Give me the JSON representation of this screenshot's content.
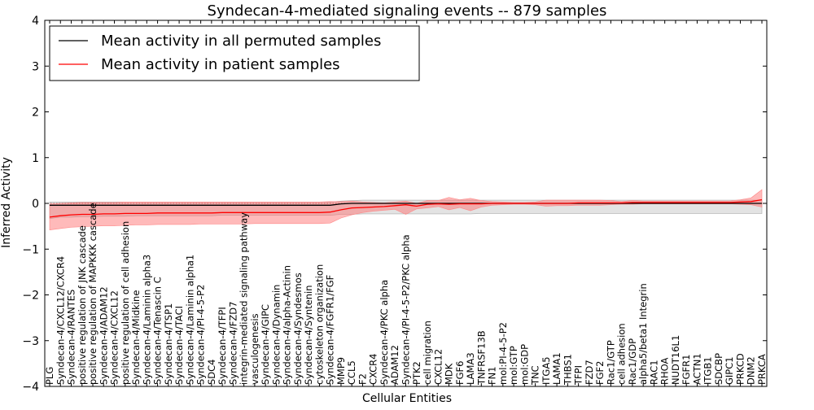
{
  "chart_data": {
    "type": "line",
    "title": "Syndecan-4-mediated signaling events -- 879 samples",
    "xlabel": "Cellular Entities",
    "ylabel": "Inferred Activity",
    "ylim": [
      -4,
      4
    ],
    "yticks": [
      "−4",
      "−3",
      "−2",
      "−1",
      "0",
      "1",
      "2",
      "3",
      "4"
    ],
    "legend": {
      "placement": "top-left",
      "entries": [
        {
          "label": "Mean activity in all permuted samples",
          "color": "#000000"
        },
        {
          "label": "Mean activity in patient samples",
          "color": "#ff0000"
        }
      ]
    },
    "categories": [
      "PLG",
      "Syndecan-4/CXCL12/CXCR4",
      "Syndecan-4/RANTES",
      "positive regulation of JNK cascade",
      "positive regulation of MAPKKK cascade",
      "Syndecan-4/ADAM12",
      "Syndecan-4/CXCL12",
      "positive regulation of cell adhesion",
      "Syndecan-4/Midkine",
      "Syndecan-4/Laminin alpha3",
      "Syndecan-4/Tenascin C",
      "Syndecan-4/TSP1",
      "Syndecan-4/TACI",
      "Syndecan-4/Laminin alpha1",
      "Syndecan-4/PI-4-5-P2",
      "SDC4",
      "Syndecan-4/TFPI",
      "Syndecan-4/FZD7",
      "integrin-mediated signaling pathway",
      "vasculogenesis",
      "Syndecan-4/GIPC",
      "Syndecan-4/Dynamin",
      "Syndecan-4/alpha-Actinin",
      "Syndecan-4/Syndesmos",
      "Syndecan-4/Syntenin",
      "cytoskeleton organization",
      "Syndecan-4/FGFR1/FGF",
      "MMP9",
      "CCL5",
      "F2",
      "CXCR4",
      "Syndecan-4/PKC alpha",
      "ADAM12",
      "Syndecan-4/PI-4-5-P2/PKC alpha",
      "PTK2",
      "cell migration",
      "CXCL12",
      "MDK",
      "FGF6",
      "LAMA3",
      "TNFRSF13B",
      "FN1",
      "mol:PI-4-5-P2",
      "mol:GTP",
      "mol:GDP",
      "TNC",
      "ITGA5",
      "LAMA1",
      "THBS1",
      "TFPI",
      "FZD7",
      "FGF2",
      "Rac1/GTP",
      "cell adhesion",
      "Rac1/GDP",
      "alpha5/beta1 Integrin",
      "RAC1",
      "RHOA",
      "NUDT16L1",
      "FGFR1",
      "ACTN1",
      "ITGB1",
      "SDCBP",
      "GIPC1",
      "PRKCD",
      "DNM2",
      "PRKCA"
    ],
    "series": [
      {
        "name": "Mean activity in all permuted samples",
        "color": "#000000",
        "values": [
          -0.04,
          -0.04,
          -0.04,
          -0.04,
          -0.04,
          -0.04,
          -0.04,
          -0.04,
          -0.04,
          -0.04,
          -0.04,
          -0.04,
          -0.04,
          -0.04,
          -0.04,
          -0.04,
          -0.04,
          -0.04,
          -0.04,
          -0.04,
          -0.04,
          -0.04,
          -0.04,
          -0.04,
          -0.04,
          -0.04,
          -0.04,
          -0.01,
          0.0,
          0.0,
          0.0,
          0.0,
          0.0,
          0.0,
          0.0,
          0.0,
          0.0,
          0.0,
          0.0,
          0.0,
          0.0,
          0.0,
          0.0,
          0.0,
          0.0,
          0.0,
          0.0,
          0.0,
          0.0,
          0.0,
          0.0,
          0.0,
          0.0,
          0.0,
          0.0,
          0.0,
          0.0,
          0.0,
          0.0,
          0.0,
          0.0,
          0.0,
          0.0,
          0.0,
          0.0,
          0.0,
          0.0
        ],
        "lower": [
          -0.33,
          -0.3,
          -0.3,
          -0.29,
          -0.29,
          -0.28,
          -0.28,
          -0.28,
          -0.27,
          -0.27,
          -0.27,
          -0.27,
          -0.27,
          -0.27,
          -0.27,
          -0.27,
          -0.26,
          -0.26,
          -0.26,
          -0.26,
          -0.26,
          -0.26,
          -0.26,
          -0.26,
          -0.26,
          -0.26,
          -0.26,
          -0.24,
          -0.24,
          -0.23,
          -0.23,
          -0.23,
          -0.23,
          -0.23,
          -0.23,
          -0.23,
          -0.23,
          -0.23,
          -0.23,
          -0.23,
          -0.22,
          -0.22,
          -0.22,
          -0.22,
          -0.22,
          -0.22,
          -0.22,
          -0.22,
          -0.22,
          -0.22,
          -0.22,
          -0.22,
          -0.22,
          -0.22,
          -0.22,
          -0.22,
          -0.22,
          -0.22,
          -0.22,
          -0.22,
          -0.22,
          -0.22,
          -0.22,
          -0.22,
          -0.22,
          -0.22,
          -0.22
        ],
        "upper": [
          0.03,
          0.03,
          0.03,
          0.03,
          0.03,
          0.03,
          0.03,
          0.03,
          0.03,
          0.03,
          0.03,
          0.03,
          0.03,
          0.03,
          0.03,
          0.03,
          0.03,
          0.03,
          0.03,
          0.03,
          0.03,
          0.03,
          0.03,
          0.03,
          0.03,
          0.03,
          0.03,
          0.05,
          0.06,
          0.07,
          0.07,
          0.07,
          0.07,
          0.07,
          0.07,
          0.07,
          0.07,
          0.07,
          0.07,
          0.07,
          0.07,
          0.07,
          0.07,
          0.07,
          0.07,
          0.07,
          0.07,
          0.07,
          0.07,
          0.07,
          0.07,
          0.07,
          0.07,
          0.07,
          0.07,
          0.07,
          0.07,
          0.07,
          0.07,
          0.07,
          0.07,
          0.07,
          0.07,
          0.07,
          0.07,
          0.07,
          0.07
        ]
      },
      {
        "name": "Mean activity in patient samples",
        "color": "#ff0000",
        "values": [
          -0.3,
          -0.27,
          -0.25,
          -0.24,
          -0.24,
          -0.23,
          -0.23,
          -0.22,
          -0.22,
          -0.22,
          -0.21,
          -0.21,
          -0.21,
          -0.21,
          -0.21,
          -0.21,
          -0.2,
          -0.2,
          -0.2,
          -0.2,
          -0.2,
          -0.2,
          -0.2,
          -0.2,
          -0.2,
          -0.2,
          -0.19,
          -0.14,
          -0.1,
          -0.09,
          -0.08,
          -0.07,
          -0.05,
          -0.03,
          -0.06,
          -0.02,
          -0.01,
          -0.02,
          -0.01,
          -0.01,
          -0.01,
          0.0,
          0.0,
          0.0,
          0.0,
          0.0,
          0.0,
          0.0,
          0.0,
          0.01,
          0.01,
          0.01,
          0.01,
          0.01,
          0.02,
          0.02,
          0.02,
          0.02,
          0.02,
          0.02,
          0.02,
          0.02,
          0.02,
          0.02,
          0.03,
          0.04,
          0.08
        ],
        "lower": [
          -0.58,
          -0.55,
          -0.52,
          -0.51,
          -0.5,
          -0.49,
          -0.49,
          -0.48,
          -0.47,
          -0.47,
          -0.46,
          -0.46,
          -0.46,
          -0.46,
          -0.45,
          -0.45,
          -0.45,
          -0.45,
          -0.45,
          -0.44,
          -0.44,
          -0.44,
          -0.44,
          -0.44,
          -0.44,
          -0.44,
          -0.43,
          -0.32,
          -0.25,
          -0.2,
          -0.17,
          -0.15,
          -0.13,
          -0.24,
          -0.12,
          -0.1,
          -0.07,
          -0.14,
          -0.09,
          -0.16,
          -0.08,
          -0.04,
          -0.03,
          -0.02,
          -0.02,
          -0.03,
          -0.06,
          -0.05,
          -0.05,
          -0.04,
          -0.04,
          -0.04,
          -0.03,
          -0.02,
          -0.02,
          -0.01,
          -0.01,
          -0.01,
          -0.01,
          -0.01,
          -0.01,
          -0.01,
          -0.01,
          -0.01,
          -0.02,
          -0.03,
          -0.08
        ],
        "upper": [
          -0.02,
          0.0,
          0.01,
          0.02,
          0.02,
          0.02,
          0.02,
          0.03,
          0.03,
          0.03,
          0.03,
          0.03,
          0.03,
          0.03,
          0.03,
          0.03,
          0.03,
          0.03,
          0.03,
          0.03,
          0.03,
          0.03,
          0.03,
          0.03,
          0.03,
          0.03,
          0.04,
          0.04,
          0.05,
          0.03,
          0.02,
          0.01,
          0.03,
          0.05,
          0.0,
          0.06,
          0.06,
          0.13,
          0.08,
          0.11,
          0.06,
          0.04,
          0.03,
          0.02,
          0.02,
          0.03,
          0.07,
          0.07,
          0.07,
          0.07,
          0.07,
          0.07,
          0.06,
          0.04,
          0.06,
          0.05,
          0.05,
          0.05,
          0.05,
          0.05,
          0.05,
          0.05,
          0.05,
          0.05,
          0.08,
          0.12,
          0.3
        ]
      }
    ]
  }
}
